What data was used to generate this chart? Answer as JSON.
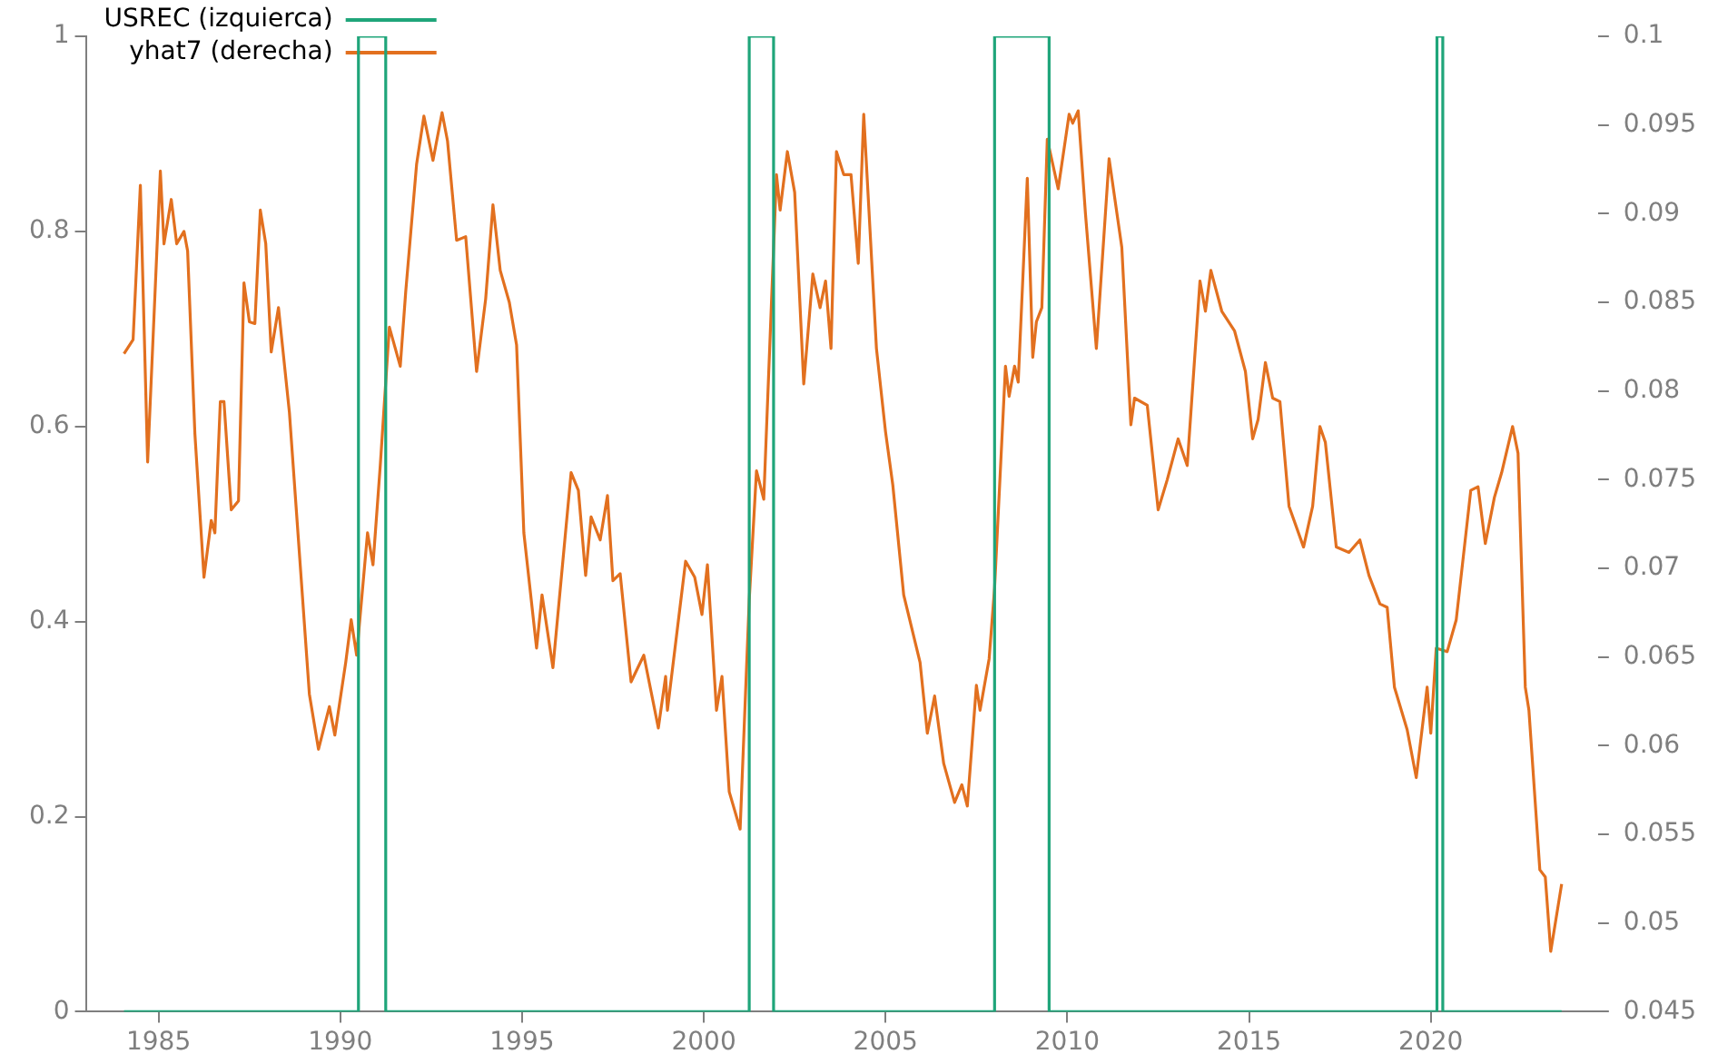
{
  "chart_data": {
    "type": "line",
    "legend": "top left",
    "xlim": [
      1983,
      2024.6
    ],
    "xticks": [
      1985,
      1990,
      1995,
      2000,
      2005,
      2010,
      2015,
      2020
    ],
    "ylim": [
      0,
      1
    ],
    "yticks": [
      0,
      0.2,
      0.4,
      0.6,
      0.8,
      1
    ],
    "y2lim": [
      0.045,
      0.1
    ],
    "y2ticks": [
      0.045,
      0.05,
      0.055,
      0.06,
      0.065,
      0.07,
      0.075,
      0.08,
      0.085,
      0.09,
      0.095,
      0.1
    ],
    "series": [
      {
        "name": "USREC (izquierca)",
        "type": "step",
        "axis": "y",
        "color": "#1fa57a",
        "x": [
          1984.05,
          1990.5,
          1991.25,
          2001.25,
          2001.92,
          2008.0,
          2009.5,
          2020.17,
          2020.33,
          2023.6
        ],
        "values": [
          0,
          0,
          1,
          0,
          1,
          0,
          1,
          0,
          1,
          0
        ]
      },
      {
        "name": "yhat7 (derecha)",
        "type": "line",
        "axis": "y2",
        "color": "#e2701f",
        "x": [
          1984.05,
          1984.3,
          1984.5,
          1984.7,
          1985.05,
          1985.15,
          1985.35,
          1985.5,
          1985.7,
          1985.8,
          1986.0,
          1986.25,
          1986.45,
          1986.55,
          1986.7,
          1986.8,
          1987.0,
          1987.2,
          1987.35,
          1987.5,
          1987.65,
          1987.8,
          1987.95,
          1988.1,
          1988.3,
          1988.6,
          1989.15,
          1989.4,
          1989.7,
          1989.85,
          1990.15,
          1990.3,
          1990.45,
          1990.75,
          1990.9,
          1991.1,
          1991.35,
          1991.65,
          1991.8,
          1992.1,
          1992.3,
          1992.55,
          1992.8,
          1992.95,
          1993.2,
          1993.45,
          1993.75,
          1994.0,
          1994.2,
          1994.4,
          1994.65,
          1994.85,
          1995.05,
          1995.4,
          1995.55,
          1995.85,
          1996.35,
          1996.55,
          1996.75,
          1996.9,
          1997.15,
          1997.35,
          1997.5,
          1997.7,
          1998.0,
          1998.35,
          1998.75,
          1998.95,
          1999.0,
          1999.5,
          1999.75,
          1999.95,
          2000.1,
          2000.35,
          2000.5,
          2000.7,
          2001.0,
          2001.25,
          2001.45,
          2001.65,
          2002.0,
          2002.1,
          2002.3,
          2002.5,
          2002.75,
          2003.0,
          2003.2,
          2003.35,
          2003.5,
          2003.65,
          2003.85,
          2004.05,
          2004.25,
          2004.4,
          2004.75,
          2005.0,
          2005.2,
          2005.5,
          2005.95,
          2006.15,
          2006.35,
          2006.6,
          2006.9,
          2007.1,
          2007.25,
          2007.5,
          2007.6,
          2007.85,
          2008.0,
          2008.3,
          2008.4,
          2008.55,
          2008.65,
          2008.9,
          2009.05,
          2009.15,
          2009.3,
          2009.45,
          2009.75,
          2010.05,
          2010.15,
          2010.3,
          2010.5,
          2010.8,
          2011.15,
          2011.5,
          2011.75,
          2011.85,
          2012.2,
          2012.5,
          2012.75,
          2013.05,
          2013.3,
          2013.65,
          2013.8,
          2013.95,
          2014.25,
          2014.6,
          2014.9,
          2015.1,
          2015.25,
          2015.45,
          2015.65,
          2015.85,
          2016.1,
          2016.5,
          2016.75,
          2016.95,
          2017.1,
          2017.4,
          2017.75,
          2018.05,
          2018.3,
          2018.6,
          2018.8,
          2019.0,
          2019.35,
          2019.6,
          2019.9,
          2020.0,
          2020.15,
          2020.45,
          2020.7,
          2021.1,
          2021.3,
          2021.5,
          2021.75,
          2021.95,
          2022.25,
          2022.4,
          2022.6,
          2022.7,
          2023.0,
          2023.15,
          2023.3,
          2023.6
        ],
        "values": [
          0.0821,
          0.0829,
          0.0916,
          0.076,
          0.0924,
          0.0883,
          0.0908,
          0.0883,
          0.089,
          0.0879,
          0.0776,
          0.0695,
          0.0727,
          0.072,
          0.0794,
          0.0794,
          0.0733,
          0.0738,
          0.0861,
          0.0839,
          0.0838,
          0.0902,
          0.0883,
          0.0822,
          0.0847,
          0.0788,
          0.0629,
          0.0598,
          0.0622,
          0.0606,
          0.0647,
          0.0671,
          0.0651,
          0.072,
          0.0702,
          0.0758,
          0.0836,
          0.0814,
          0.0856,
          0.0928,
          0.0955,
          0.093,
          0.0957,
          0.0941,
          0.0885,
          0.0887,
          0.0811,
          0.0852,
          0.0905,
          0.0868,
          0.085,
          0.0826,
          0.072,
          0.0655,
          0.0685,
          0.0644,
          0.0754,
          0.0744,
          0.0696,
          0.0729,
          0.0716,
          0.0741,
          0.0693,
          0.0697,
          0.0636,
          0.0651,
          0.061,
          0.0639,
          0.062,
          0.0704,
          0.0695,
          0.0674,
          0.0702,
          0.062,
          0.0639,
          0.0574,
          0.0553,
          0.0682,
          0.0755,
          0.0739,
          0.0922,
          0.0902,
          0.0935,
          0.0912,
          0.0804,
          0.0866,
          0.0847,
          0.0862,
          0.0824,
          0.0935,
          0.0922,
          0.0922,
          0.0872,
          0.0956,
          0.0824,
          0.0777,
          0.0747,
          0.0685,
          0.0647,
          0.0607,
          0.0628,
          0.059,
          0.0568,
          0.0578,
          0.0566,
          0.0634,
          0.062,
          0.0649,
          0.0689,
          0.0814,
          0.0797,
          0.0814,
          0.0805,
          0.092,
          0.0819,
          0.0839,
          0.0847,
          0.0942,
          0.0914,
          0.0956,
          0.0951,
          0.0958,
          0.09,
          0.0824,
          0.0931,
          0.0881,
          0.0781,
          0.0796,
          0.0792,
          0.0733,
          0.075,
          0.0773,
          0.0758,
          0.0862,
          0.0845,
          0.0868,
          0.0845,
          0.0834,
          0.0811,
          0.0773,
          0.0784,
          0.0816,
          0.0796,
          0.0794,
          0.0735,
          0.0712,
          0.0735,
          0.078,
          0.0771,
          0.0712,
          0.0709,
          0.0716,
          0.0696,
          0.068,
          0.0678,
          0.0633,
          0.0609,
          0.0582,
          0.0633,
          0.0607,
          0.0655,
          0.0653,
          0.0671,
          0.0744,
          0.0746,
          0.0714,
          0.074,
          0.0754,
          0.078,
          0.0765,
          0.0633,
          0.062,
          0.053,
          0.0526,
          0.0484,
          0.0522
        ]
      }
    ]
  }
}
